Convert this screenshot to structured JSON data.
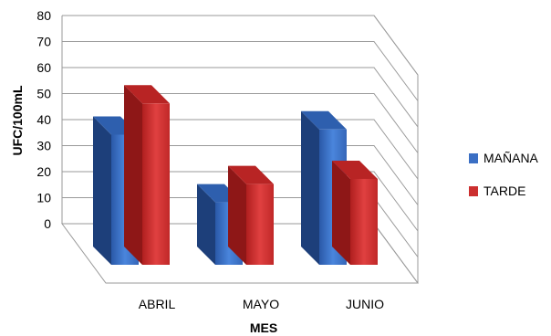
{
  "chart_data": {
    "type": "bar",
    "categories": [
      "ABRIL",
      "MAYO",
      "JUNIO"
    ],
    "series": [
      {
        "name": "MAÑANA",
        "values": [
          50,
          24,
          52
        ],
        "color": "#3b6fc4"
      },
      {
        "name": "TARDE",
        "values": [
          62,
          31,
          33
        ],
        "color": "#cc2f2f"
      }
    ],
    "xlabel": "MES",
    "ylabel": "UFC/100mL",
    "ylim": [
      0,
      80
    ],
    "yticks": [
      0,
      10,
      20,
      30,
      40,
      50,
      60,
      70,
      80
    ],
    "legend_position": "right",
    "three_d": true,
    "grid": true
  }
}
